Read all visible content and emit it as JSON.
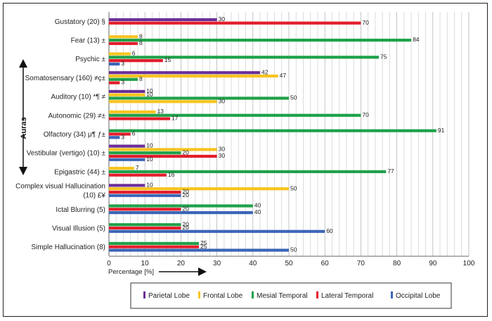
{
  "chart_data": {
    "type": "bar",
    "orientation": "horizontal",
    "ylabel": "Auras",
    "xlabel": "Percentage [%]",
    "xlim": [
      0,
      100
    ],
    "xticks": [
      "0",
      "10",
      "20",
      "30",
      "40",
      "50",
      "60",
      "70",
      "80",
      "90",
      "100"
    ],
    "grid": true,
    "legend_position": "bottom",
    "series": [
      {
        "name": "Parietal Lobe",
        "color": "#6b2f98"
      },
      {
        "name": "Frontal Lobe",
        "color": "#f7c41f"
      },
      {
        "name": "Mesial Temporal",
        "color": "#1fa14a"
      },
      {
        "name": "Lateral Temporal",
        "color": "#e31d2b"
      },
      {
        "name": "Occipital Lobe",
        "color": "#3b66b7"
      }
    ],
    "categories": [
      {
        "label": "Gustatory (20) §",
        "bars": [
          {
            "series": 0,
            "value": 30
          },
          {
            "series": 3,
            "value": 70
          }
        ]
      },
      {
        "label": "Fear (13) ±",
        "bars": [
          {
            "series": 1,
            "value": 8
          },
          {
            "series": 2,
            "value": 84
          },
          {
            "series": 3,
            "value": 8
          }
        ]
      },
      {
        "label": "Psychic ±",
        "bars": [
          {
            "series": 1,
            "value": 6
          },
          {
            "series": 2,
            "value": 75
          },
          {
            "series": 3,
            "value": 15
          },
          {
            "series": 4,
            "value": 3
          }
        ]
      },
      {
        "label": "Somatosensary (160) ≠ç±",
        "bars": [
          {
            "series": 0,
            "value": 42
          },
          {
            "series": 1,
            "value": 47
          },
          {
            "series": 2,
            "value": 8
          },
          {
            "series": 3,
            "value": 3
          }
        ]
      },
      {
        "label": "Auditory (10) *¶ ≠",
        "bars": [
          {
            "series": 0,
            "value": 10
          },
          {
            "series": 1,
            "value": 10
          },
          {
            "series": 2,
            "value": 50
          },
          {
            "series": 1,
            "value": 30
          }
        ]
      },
      {
        "label": "Autonomic (29) ≠±",
        "bars": [
          {
            "series": 1,
            "value": 13
          },
          {
            "series": 2,
            "value": 70
          },
          {
            "series": 3,
            "value": 17
          }
        ]
      },
      {
        "label": "Olfactory (34) µ¶ ƒ±",
        "bars": [
          {
            "series": 2,
            "value": 91
          },
          {
            "series": 3,
            "value": 6
          },
          {
            "series": 4,
            "value": 3
          }
        ]
      },
      {
        "label": "Vestibular (vertigo) (10) ±",
        "bars": [
          {
            "series": 0,
            "value": 10
          },
          {
            "series": 1,
            "value": 30
          },
          {
            "series": 2,
            "value": 20
          },
          {
            "series": 3,
            "value": 30
          },
          {
            "series": 4,
            "value": 10
          }
        ]
      },
      {
        "label": "Epigastric (44) ±",
        "bars": [
          {
            "series": 1,
            "value": 7
          },
          {
            "series": 2,
            "value": 77
          },
          {
            "series": 3,
            "value": 16
          }
        ]
      },
      {
        "label": "Complex visual Hallucination|(10)  £¥",
        "bars": [
          {
            "series": 0,
            "value": 10
          },
          {
            "series": 1,
            "value": 50
          },
          {
            "series": 3,
            "value": 20
          },
          {
            "series": 4,
            "value": 20
          }
        ]
      },
      {
        "label": "Ictal Blurring (5)",
        "bars": [
          {
            "series": 2,
            "value": 40
          },
          {
            "series": 3,
            "value": 20
          },
          {
            "series": 4,
            "value": 40
          }
        ]
      },
      {
        "label": "Visual Illusion (5)",
        "bars": [
          {
            "series": 2,
            "value": 20
          },
          {
            "series": 3,
            "value": 20
          },
          {
            "series": 4,
            "value": 60
          }
        ]
      },
      {
        "label": "Simple Hallucination (8)",
        "bars": [
          {
            "series": 2,
            "value": 25
          },
          {
            "series": 3,
            "value": 25
          },
          {
            "series": 4,
            "value": 50
          }
        ]
      }
    ]
  }
}
